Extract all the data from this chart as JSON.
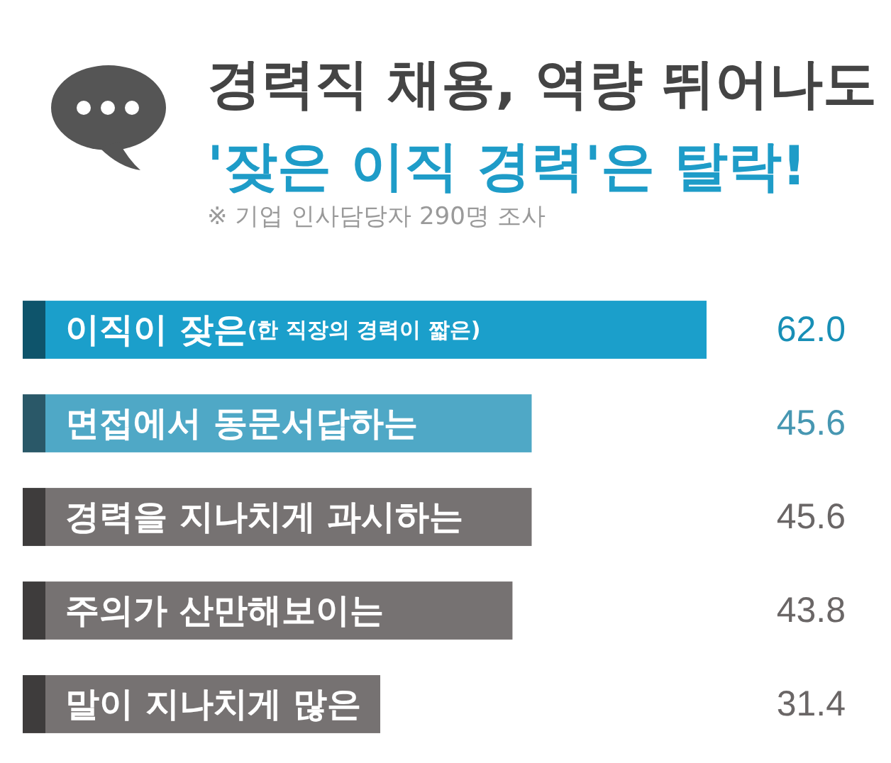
{
  "chart_data": {
    "type": "bar",
    "orientation": "horizontal",
    "title": "경력직 채용, 역량 뛰어나도\n'잦은 이직 경력'은 탈락!",
    "subtitle": "※ 기업 인사담당자 290명 조사",
    "categories": [
      "이직이 잦은(한 직장의 경력이 짧은)",
      "면접에서 동문서답하는",
      "경력을 지나치게 과시하는",
      "주의가 산만해보이는",
      "말이 지나치게 많은"
    ],
    "values": [
      62.0,
      45.6,
      45.6,
      43.8,
      31.4
    ],
    "value_labels": [
      "62.0",
      "45.6",
      "45.6",
      "43.8",
      "31.4"
    ],
    "colors": [
      "#1b9fcb",
      "#4fa8c6",
      "#767272",
      "#767272",
      "#767272"
    ]
  }
}
